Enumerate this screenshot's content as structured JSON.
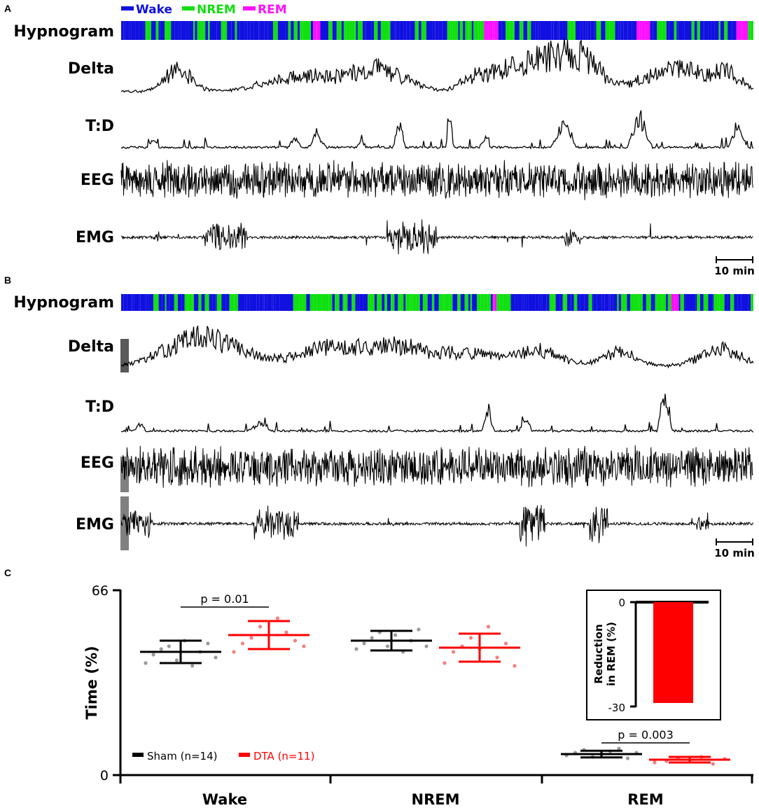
{
  "panels": {
    "a": {
      "letter": "A",
      "legend": [
        {
          "label": "Wake",
          "color": "#1010e0"
        },
        {
          "label": "NREM",
          "color": "#10e010"
        },
        {
          "label": "REM",
          "color": "#ff10ff"
        }
      ],
      "track_labels": [
        "Hypnogram",
        "Delta",
        "T:D",
        "EEG",
        "EMG"
      ],
      "scale_bar": "10 min"
    },
    "b": {
      "letter": "B",
      "track_labels": [
        "Hypnogram",
        "Delta",
        "T:D",
        "EEG",
        "EMG"
      ],
      "scale_bar": "10 min"
    },
    "c": {
      "letter": "C"
    }
  },
  "colors": {
    "wake": "#1010e0",
    "nrem": "#10e010",
    "rem": "#ff10ff",
    "sham": "#000000",
    "dta": "#ff0000",
    "trace": "#000000"
  },
  "chart_data": {
    "type": "scatter",
    "ylabel": "Time (%)",
    "ylim": [
      0,
      66
    ],
    "yticks": [
      0,
      66
    ],
    "categories": [
      "Wake",
      "NREM",
      "REM"
    ],
    "series": [
      {
        "name": "Sham (n=14)",
        "color": "#000000",
        "mean": [
          44,
          48,
          7.5
        ],
        "sd": [
          4,
          3.5,
          1.2
        ],
        "points": [
          [
            40,
            43,
            45,
            46,
            41,
            48,
            39,
            44,
            47,
            42
          ],
          [
            45,
            47,
            49,
            51,
            46,
            50,
            44,
            48,
            52,
            46
          ],
          [
            7,
            8,
            9,
            6.5,
            7.5,
            8.5,
            9.5,
            6,
            8
          ]
        ]
      },
      {
        "name": "DTA (n=11)",
        "color": "#ff0000",
        "mean": [
          50,
          45.5,
          5.5
        ],
        "sd": [
          5,
          5,
          1
        ],
        "points": [
          [
            44,
            47,
            49,
            53,
            50,
            56,
            51,
            48,
            46
          ],
          [
            40,
            44,
            46,
            49,
            45,
            53,
            42,
            47,
            39
          ],
          [
            4.5,
            5,
            6,
            5.5,
            6.5,
            4,
            5.8
          ]
        ]
      }
    ],
    "significance": [
      {
        "category": "Wake",
        "label": "p = 0.01",
        "y": 60
      },
      {
        "category": "REM",
        "label": "p = 0.003",
        "y": 11.5
      }
    ],
    "legend_position": "bottom-left",
    "inset": {
      "type": "bar",
      "ylabel": "Reduction in REM (%)",
      "ylabel_lines": [
        "Reduction",
        "in REM (%)"
      ],
      "ylim": [
        -30,
        0
      ],
      "yticks": [
        0,
        -30
      ],
      "values": [
        -29
      ],
      "color": "#ff0000"
    }
  }
}
